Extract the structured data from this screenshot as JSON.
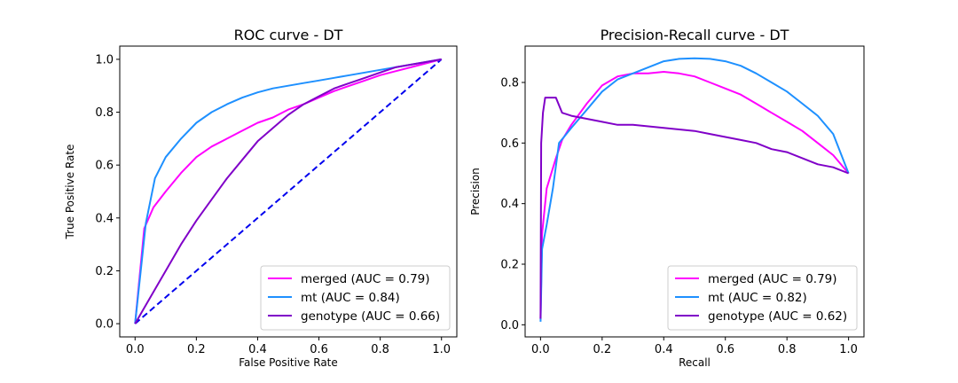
{
  "chart_data": [
    {
      "type": "line",
      "title": "ROC curve - DT",
      "xlabel": "False Positive Rate",
      "ylabel": "True Positive Rate",
      "xlim": [
        -0.05,
        1.05
      ],
      "ylim": [
        -0.05,
        1.05
      ],
      "xticks": [
        "0.0",
        "0.2",
        "0.4",
        "0.6",
        "0.8",
        "1.0"
      ],
      "yticks": [
        "0.0",
        "0.2",
        "0.4",
        "0.6",
        "0.8",
        "1.0"
      ],
      "legend_position": "lower-right",
      "diagonal": {
        "color": "#0000ee",
        "style": "dashed",
        "x": [
          0,
          1
        ],
        "y": [
          0,
          1
        ]
      },
      "series": [
        {
          "name": "merged (AUC = 0.79)",
          "color": "#ff00ff",
          "x": [
            0,
            0.03,
            0.06,
            0.1,
            0.15,
            0.2,
            0.25,
            0.3,
            0.35,
            0.4,
            0.45,
            0.5,
            0.55,
            0.6,
            0.65,
            0.7,
            0.75,
            0.8,
            0.85,
            0.9,
            0.95,
            1.0
          ],
          "y": [
            0,
            0.36,
            0.44,
            0.5,
            0.57,
            0.63,
            0.67,
            0.7,
            0.73,
            0.76,
            0.78,
            0.81,
            0.83,
            0.855,
            0.88,
            0.9,
            0.92,
            0.94,
            0.955,
            0.97,
            0.985,
            1.0
          ]
        },
        {
          "name": "mt (AUC = 0.84)",
          "color": "#1e90ff",
          "x": [
            0,
            0.035,
            0.065,
            0.1,
            0.15,
            0.2,
            0.25,
            0.3,
            0.35,
            0.4,
            0.45,
            0.5,
            0.55,
            0.6,
            0.65,
            0.7,
            0.75,
            0.8,
            0.85,
            0.9,
            0.95,
            1.0
          ],
          "y": [
            0,
            0.38,
            0.55,
            0.63,
            0.7,
            0.76,
            0.8,
            0.83,
            0.855,
            0.875,
            0.89,
            0.9,
            0.91,
            0.92,
            0.93,
            0.94,
            0.95,
            0.96,
            0.97,
            0.98,
            0.99,
            1.0
          ]
        },
        {
          "name": "genotype (AUC = 0.66)",
          "color": "#8000c8",
          "x": [
            0,
            0.03,
            0.07,
            0.1,
            0.15,
            0.2,
            0.25,
            0.3,
            0.35,
            0.4,
            0.45,
            0.5,
            0.55,
            0.6,
            0.65,
            0.7,
            0.75,
            0.8,
            0.85,
            0.9,
            0.95,
            1.0
          ],
          "y": [
            0,
            0.06,
            0.14,
            0.2,
            0.3,
            0.39,
            0.47,
            0.55,
            0.62,
            0.69,
            0.74,
            0.79,
            0.83,
            0.86,
            0.89,
            0.91,
            0.93,
            0.95,
            0.97,
            0.98,
            0.99,
            1.0
          ]
        }
      ]
    },
    {
      "type": "line",
      "title": "Precision-Recall curve - DT",
      "xlabel": "Recall",
      "ylabel": "Precision",
      "xlim": [
        -0.05,
        1.05
      ],
      "ylim": [
        -0.04,
        0.92
      ],
      "xticks": [
        "0.0",
        "0.2",
        "0.4",
        "0.6",
        "0.8",
        "1.0"
      ],
      "yticks": [
        "0.0",
        "0.2",
        "0.4",
        "0.6",
        "0.8"
      ],
      "legend_position": "lower-right",
      "series": [
        {
          "name": "merged (AUC = 0.79)",
          "color": "#ff00ff",
          "x": [
            0,
            0.005,
            0.02,
            0.05,
            0.07,
            0.1,
            0.15,
            0.2,
            0.25,
            0.3,
            0.35,
            0.4,
            0.45,
            0.5,
            0.55,
            0.6,
            0.65,
            0.7,
            0.75,
            0.8,
            0.85,
            0.9,
            0.95,
            1.0
          ],
          "y": [
            0.02,
            0.3,
            0.45,
            0.55,
            0.61,
            0.66,
            0.73,
            0.79,
            0.82,
            0.83,
            0.83,
            0.835,
            0.83,
            0.82,
            0.8,
            0.78,
            0.76,
            0.73,
            0.7,
            0.67,
            0.64,
            0.6,
            0.56,
            0.5
          ]
        },
        {
          "name": "mt (AUC = 0.82)",
          "color": "#1e90ff",
          "x": [
            0,
            0.005,
            0.02,
            0.04,
            0.06,
            0.1,
            0.15,
            0.2,
            0.25,
            0.3,
            0.35,
            0.4,
            0.45,
            0.5,
            0.55,
            0.6,
            0.65,
            0.7,
            0.75,
            0.8,
            0.85,
            0.9,
            0.95,
            1.0
          ],
          "y": [
            0.01,
            0.25,
            0.33,
            0.45,
            0.6,
            0.65,
            0.71,
            0.77,
            0.81,
            0.83,
            0.85,
            0.87,
            0.878,
            0.88,
            0.878,
            0.87,
            0.855,
            0.83,
            0.8,
            0.77,
            0.73,
            0.69,
            0.63,
            0.5
          ]
        },
        {
          "name": "genotype (AUC = 0.62)",
          "color": "#8000c8",
          "x": [
            0,
            0.002,
            0.008,
            0.015,
            0.03,
            0.05,
            0.07,
            0.1,
            0.15,
            0.2,
            0.25,
            0.3,
            0.35,
            0.4,
            0.45,
            0.5,
            0.55,
            0.6,
            0.65,
            0.7,
            0.75,
            0.8,
            0.85,
            0.9,
            0.95,
            1.0
          ],
          "y": [
            0.02,
            0.6,
            0.7,
            0.75,
            0.75,
            0.75,
            0.7,
            0.69,
            0.68,
            0.67,
            0.66,
            0.66,
            0.655,
            0.65,
            0.645,
            0.64,
            0.63,
            0.62,
            0.61,
            0.6,
            0.58,
            0.57,
            0.55,
            0.53,
            0.52,
            0.5
          ]
        }
      ]
    }
  ]
}
